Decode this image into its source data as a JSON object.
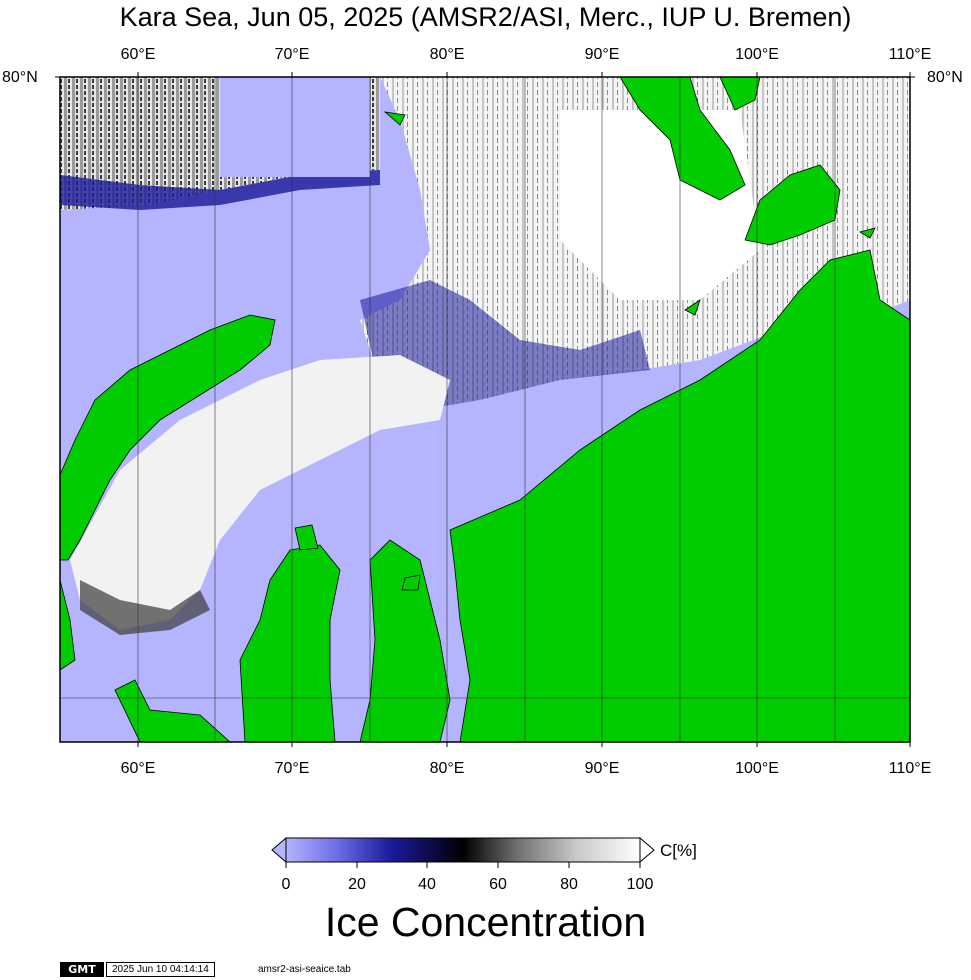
{
  "map": {
    "title": "Kara Sea, Jun 05, 2025 (AMSR2/ASI, Merc., IUP U. Bremen)",
    "lon_ticks": [
      "60°E",
      "70°E",
      "80°E",
      "90°E",
      "100°E",
      "110°E"
    ],
    "lat_tick_left": "80°N",
    "lat_tick_right": "80°N",
    "colors": {
      "land": "#00cc00",
      "open_water": "#b4b4ff",
      "low_ice": "#0000aa",
      "mid_ice": "#000000",
      "high_ice": "#ffffff",
      "frame": "#000000"
    }
  },
  "colorbar": {
    "ticks": [
      "0",
      "20",
      "40",
      "60",
      "80",
      "100"
    ],
    "unit": "C[%]",
    "title": "Ice Concentration",
    "stops": [
      "#b4b4ff",
      "#6a6ae6",
      "#1a1a9a",
      "#000000",
      "#6e6e6e",
      "#c8c8c8",
      "#ffffff"
    ]
  },
  "footer": {
    "logo": "GMT",
    "timestamp": "2025 Jun 10 04:14:14",
    "table": "amsr2-asi-seaice.tab"
  }
}
